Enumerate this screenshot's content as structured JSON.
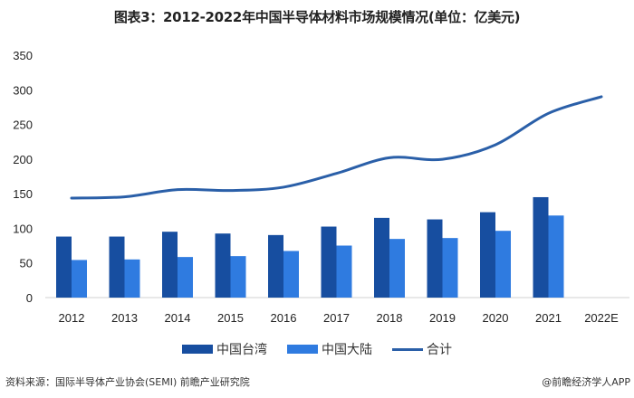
{
  "chart_data": {
    "type": "bar",
    "title": "图表3：2012-2022年中国半导体材料市场规模情况(单位：亿美元)",
    "xlabel": "",
    "ylabel": "",
    "categories": [
      "2012",
      "2013",
      "2014",
      "2015",
      "2016",
      "2017",
      "2018",
      "2019",
      "2020",
      "2021",
      "2022E"
    ],
    "ylim": [
      0,
      350
    ],
    "yticks": [
      "0",
      "50",
      "100",
      "150",
      "200",
      "250",
      "300",
      "350"
    ],
    "series": [
      {
        "name": "中国台湾",
        "type": "bar",
        "color": "#174ea0",
        "values": [
          88.1,
          88.1,
          95.1,
          92.5,
          90.3,
          102.5,
          115.1,
          112.9,
          123.3,
          145.0,
          null
        ]
      },
      {
        "name": "中国大陆",
        "type": "bar",
        "color": "#2f7be0",
        "values": [
          54.3,
          55.1,
          58.6,
          59.9,
          67.3,
          75.1,
          84.7,
          86.0,
          96.4,
          118.5,
          null
        ]
      },
      {
        "name": "合计",
        "type": "line",
        "color": "#2a5fa8",
        "values": [
          143.7,
          145.5,
          155.9,
          154.6,
          159.4,
          179.3,
          201.9,
          199.7,
          220.6,
          266.0,
          290.0
        ]
      }
    ],
    "legend_position": "bottom",
    "grid": false
  },
  "footer": {
    "source": "资料来源：国际半导体产业协会(SEMI) 前瞻产业研究院",
    "credit": "@前瞻经济学人APP"
  }
}
